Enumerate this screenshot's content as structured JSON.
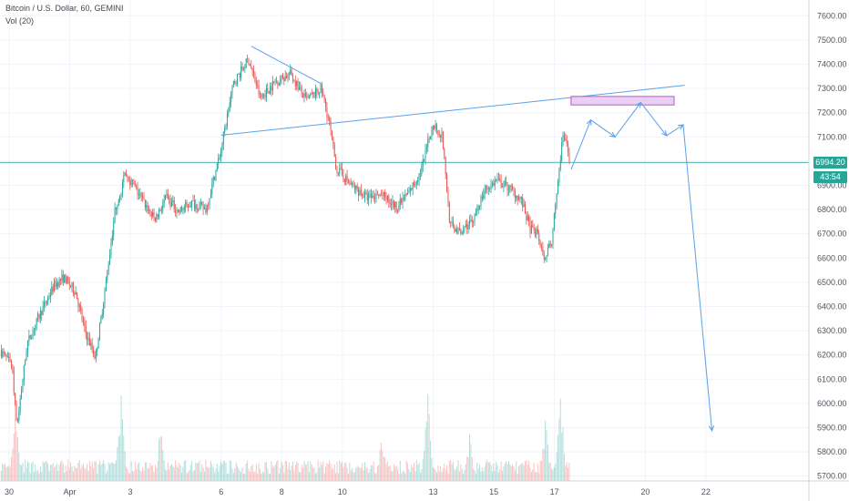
{
  "header": {
    "title": "Bitcoin / U.S. Dollar, 60, GEMINI",
    "volume_label": "Vol (20)"
  },
  "price_badge": {
    "last_price": "6994.20",
    "countdown": "43:54",
    "color": "#26a69a"
  },
  "colors": {
    "up": "#26a69a",
    "down": "#ef5350",
    "drawing": "#5aa0e8",
    "zone_fill": "#e6c8f0",
    "zone_border": "#b45bd0"
  },
  "chart_data": {
    "type": "candlestick",
    "symbol": "BTC/USD",
    "interval": "60",
    "exchange": "GEMINI",
    "y_axis": {
      "ticks": [
        5700,
        5800,
        5900,
        6000,
        6100,
        6200,
        6300,
        6400,
        6500,
        6600,
        6700,
        6800,
        6900,
        7000,
        7100,
        7200,
        7300,
        7400,
        7500,
        7600
      ],
      "tick_labels": [
        "5700.00",
        "5800.00",
        "5900.00",
        "6000.00",
        "6100.00",
        "6200.00",
        "6300.00",
        "6400.00",
        "6500.00",
        "6600.00",
        "6700.00",
        "6800.00",
        "6900.00",
        "7000.00",
        "7100.00",
        "7200.00",
        "7300.00",
        "7400.00",
        "7500.00",
        "7600.00"
      ],
      "range": [
        5680,
        7665
      ]
    },
    "x_axis": {
      "tick_labels": [
        "30",
        "Apr",
        "3",
        "6",
        "8",
        "10",
        "13",
        "15",
        "17",
        "20",
        "22"
      ],
      "tick_days": [
        0,
        2,
        4,
        7,
        9,
        11,
        14,
        16,
        18,
        21,
        23
      ],
      "range_days": [
        -0.3,
        26.4
      ]
    },
    "last_price": 6994.2,
    "price_path": [
      [
        -0.3,
        6220
      ],
      [
        0.1,
        6150
      ],
      [
        0.25,
        5900
      ],
      [
        0.6,
        6250
      ],
      [
        1.1,
        6390
      ],
      [
        1.5,
        6490
      ],
      [
        1.8,
        6520
      ],
      [
        2.2,
        6460
      ],
      [
        2.5,
        6300
      ],
      [
        2.85,
        6190
      ],
      [
        3.2,
        6500
      ],
      [
        3.5,
        6800
      ],
      [
        3.85,
        6950
      ],
      [
        4.2,
        6880
      ],
      [
        4.5,
        6820
      ],
      [
        4.8,
        6760
      ],
      [
        5.2,
        6850
      ],
      [
        5.6,
        6790
      ],
      [
        6.0,
        6830
      ],
      [
        6.5,
        6800
      ],
      [
        7.0,
        7050
      ],
      [
        7.4,
        7320
      ],
      [
        7.9,
        7420
      ],
      [
        8.3,
        7260
      ],
      [
        8.8,
        7330
      ],
      [
        9.3,
        7360
      ],
      [
        9.8,
        7250
      ],
      [
        10.3,
        7300
      ],
      [
        10.55,
        7170
      ],
      [
        10.8,
        6970
      ],
      [
        11.3,
        6900
      ],
      [
        11.8,
        6850
      ],
      [
        12.3,
        6860
      ],
      [
        12.8,
        6810
      ],
      [
        13.2,
        6870
      ],
      [
        13.6,
        6960
      ],
      [
        14.0,
        7160
      ],
      [
        14.3,
        7100
      ],
      [
        14.55,
        6740
      ],
      [
        14.9,
        6700
      ],
      [
        15.3,
        6760
      ],
      [
        15.7,
        6880
      ],
      [
        16.1,
        6920
      ],
      [
        16.5,
        6890
      ],
      [
        16.9,
        6840
      ],
      [
        17.2,
        6720
      ],
      [
        17.45,
        6700
      ],
      [
        17.65,
        6600
      ],
      [
        17.9,
        6660
      ],
      [
        18.15,
        6960
      ],
      [
        18.3,
        7120
      ],
      [
        18.5,
        6994
      ]
    ],
    "volume": {
      "label": "Vol (20)",
      "spikes": [
        [
          0.2,
          0.75
        ],
        [
          3.7,
          0.78
        ],
        [
          5.0,
          0.5
        ],
        [
          12.3,
          0.45
        ],
        [
          13.8,
          0.85
        ],
        [
          15.2,
          0.4
        ],
        [
          17.7,
          0.55
        ],
        [
          18.2,
          0.85
        ]
      ]
    },
    "drawings": {
      "rising_trendline": {
        "from": [
          7.0,
          7107
        ],
        "to": [
          22.3,
          7313
        ]
      },
      "triangle_upper_line": {
        "from": [
          8.0,
          7474
        ],
        "to": [
          10.3,
          7320
        ]
      },
      "resistance_zone": {
        "x_range": [
          18.55,
          21.95
        ],
        "y_range": [
          7232,
          7267
        ]
      },
      "forecast_path": [
        [
          18.55,
          6965
        ],
        [
          19.2,
          7170
        ],
        [
          20.0,
          7100
        ],
        [
          20.85,
          7242
        ],
        [
          21.7,
          7105
        ],
        [
          22.25,
          7150
        ],
        [
          23.2,
          5887
        ]
      ]
    }
  }
}
